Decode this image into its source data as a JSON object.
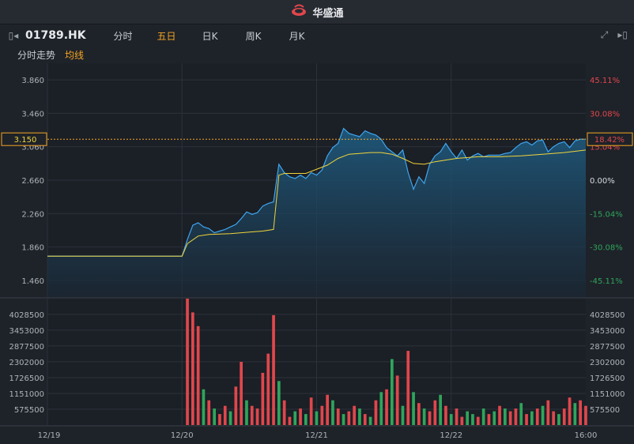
{
  "app": {
    "title": "华盛通",
    "logo_icon": "huasheng-logo-icon"
  },
  "toolbar": {
    "symbol": "01789.HK",
    "tabs": [
      "分时",
      "五日",
      "日K",
      "周K",
      "月K"
    ],
    "active_tab": "五日"
  },
  "subbar": {
    "mode": "分时走势",
    "indicator": "均线"
  },
  "colors": {
    "up": "#e0474c",
    "down": "#2fa55b",
    "price_line": "#3ea6f0",
    "avg_line": "#f0d43a",
    "accent": "#f5a623"
  },
  "chart_data": {
    "type": "line",
    "price_axis_left": [
      "3.860",
      "3.460",
      "3.060",
      "2.660",
      "2.260",
      "1.860",
      "1.460"
    ],
    "pct_axis_right": [
      "45.11%",
      "30.08%",
      "15.04%",
      "0.00%",
      "-15.04%",
      "-30.08%",
      "-45.11%"
    ],
    "current_price_label": "3.150",
    "current_pct_label": "18.42%",
    "volume_axis": [
      "4028500",
      "3453000",
      "2877500",
      "2302000",
      "1726500",
      "1151000",
      "575500"
    ],
    "x_labels": [
      "12/19",
      "12/20",
      "12/21",
      "12/22",
      "16:00"
    ],
    "ylim": [
      1.26,
      4.06
    ],
    "vol_max": 4600000,
    "series": [
      {
        "role": "price",
        "x": [
          0,
          1,
          2,
          3,
          4,
          5,
          6,
          7,
          8,
          9,
          10,
          11,
          12,
          13,
          14,
          15,
          16,
          17,
          18,
          19,
          20,
          21,
          22,
          23,
          24,
          25,
          26,
          27,
          28,
          29,
          30,
          31,
          32,
          33,
          34,
          35,
          36,
          37,
          38,
          39,
          40,
          41,
          42,
          43,
          44,
          45,
          46,
          47,
          48,
          49,
          50,
          51,
          52,
          53,
          54,
          55,
          56,
          57,
          58,
          59,
          60,
          61,
          62,
          63,
          64,
          65,
          66,
          67,
          68,
          69,
          70,
          71,
          72,
          73,
          74,
          75,
          76,
          77,
          78,
          79,
          80,
          81,
          82,
          83,
          84,
          85,
          86,
          87,
          88,
          89,
          90,
          91,
          92,
          93,
          94,
          95,
          96,
          97,
          98,
          99,
          100
        ],
        "values": [
          1.75,
          1.75,
          1.75,
          1.75,
          1.75,
          1.75,
          1.75,
          1.75,
          1.75,
          1.75,
          1.75,
          1.75,
          1.75,
          1.75,
          1.75,
          1.75,
          1.75,
          1.75,
          1.75,
          1.75,
          1.75,
          1.75,
          1.75,
          1.75,
          1.75,
          1.75,
          1.95,
          2.12,
          2.15,
          2.1,
          2.08,
          2.03,
          2.05,
          2.07,
          2.1,
          2.13,
          2.2,
          2.28,
          2.25,
          2.27,
          2.35,
          2.38,
          2.4,
          2.85,
          2.75,
          2.7,
          2.68,
          2.72,
          2.68,
          2.75,
          2.72,
          2.78,
          2.95,
          3.05,
          3.1,
          3.28,
          3.22,
          3.2,
          3.18,
          3.25,
          3.22,
          3.2,
          3.15,
          3.05,
          3.0,
          2.95,
          3.02,
          2.75,
          2.55,
          2.7,
          2.62,
          2.85,
          2.95,
          3.0,
          3.1,
          3.0,
          2.92,
          3.02,
          2.9,
          2.95,
          2.98,
          2.94,
          2.96,
          2.96,
          2.96,
          2.98,
          2.99,
          3.05,
          3.1,
          3.12,
          3.08,
          3.13,
          3.14,
          3.0,
          3.06,
          3.1,
          3.12,
          3.05,
          3.13,
          3.15,
          3.15
        ]
      },
      {
        "role": "average",
        "x": [
          0,
          25,
          26,
          28,
          30,
          34,
          38,
          40,
          42,
          43,
          44,
          48,
          52,
          54,
          56,
          58,
          60,
          62,
          64,
          66,
          68,
          70,
          72,
          76,
          80,
          84,
          88,
          92,
          96,
          100
        ],
        "values": [
          1.75,
          1.75,
          1.9,
          1.99,
          2.01,
          2.02,
          2.04,
          2.05,
          2.07,
          2.72,
          2.74,
          2.74,
          2.84,
          2.92,
          2.97,
          2.98,
          2.99,
          2.99,
          2.97,
          2.92,
          2.86,
          2.85,
          2.88,
          2.92,
          2.94,
          2.94,
          2.95,
          2.97,
          2.99,
          3.02
        ]
      }
    ],
    "volume": [
      0,
      0,
      0,
      0,
      0,
      0,
      0,
      0,
      0,
      0,
      0,
      0,
      0,
      0,
      0,
      0,
      0,
      0,
      0,
      0,
      0,
      0,
      0,
      0,
      0,
      0,
      4600000,
      4100000,
      3600000,
      1300000,
      900000,
      600000,
      400000,
      700000,
      500000,
      1400000,
      2300000,
      900000,
      700000,
      600000,
      1900000,
      2600000,
      4000000,
      1600000,
      900000,
      300000,
      500000,
      600000,
      400000,
      1000000,
      500000,
      700000,
      1100000,
      900000,
      600000,
      400000,
      500000,
      700000,
      600000,
      400000,
      300000,
      900000,
      1200000,
      1300000,
      2400000,
      1800000,
      700000,
      2700000,
      1200000,
      800000,
      600000,
      500000,
      900000,
      1100000,
      700000,
      400000,
      600000,
      300000,
      500000,
      400000,
      300000,
      600000,
      400000,
      500000,
      700000,
      600000,
      500000,
      600000,
      800000,
      400000,
      500000,
      600000,
      700000,
      900000,
      500000,
      400000,
      600000,
      1000000,
      800000,
      900000,
      700000
    ],
    "volume_up": [
      true,
      true,
      true,
      true,
      true,
      true,
      true,
      true,
      true,
      true,
      true,
      true,
      true,
      true,
      true,
      true,
      true,
      true,
      true,
      true,
      true,
      true,
      true,
      true,
      true,
      true,
      true,
      true,
      true,
      false,
      true,
      false,
      true,
      true,
      false,
      true,
      true,
      false,
      true,
      true,
      true,
      true,
      true,
      false,
      true,
      true,
      false,
      true,
      false,
      true,
      false,
      true,
      true,
      false,
      true,
      false,
      true,
      true,
      false,
      true,
      false,
      true,
      false,
      true,
      false,
      true,
      false,
      true,
      false,
      true,
      false,
      true,
      true,
      false,
      true,
      false,
      true,
      true,
      false,
      false,
      true,
      false,
      true,
      false,
      true,
      false,
      true,
      true,
      false,
      true,
      false,
      true,
      false,
      true,
      true,
      false,
      true,
      true,
      false,
      true,
      true
    ]
  }
}
